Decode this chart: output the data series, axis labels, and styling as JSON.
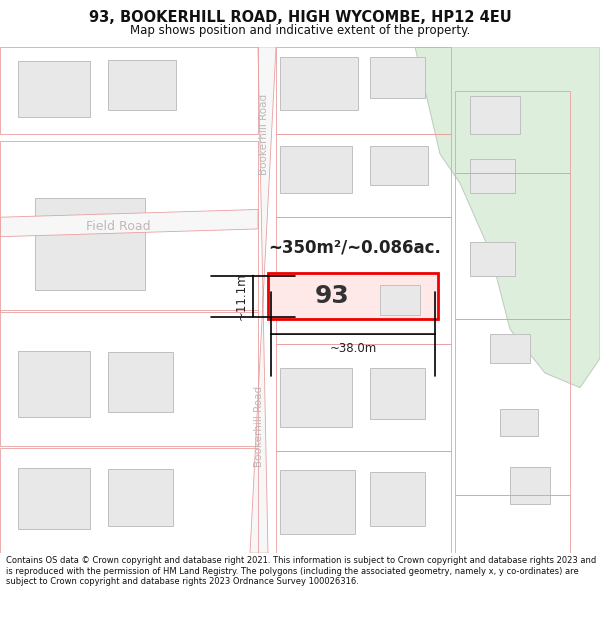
{
  "title": "93, BOOKERHILL ROAD, HIGH WYCOMBE, HP12 4EU",
  "subtitle": "Map shows position and indicative extent of the property.",
  "footer_text": "Contains OS data © Crown copyright and database right 2021. This information is subject to Crown copyright and database rights 2023 and is reproduced with the permission of HM Land Registry. The polygons (including the associated geometry, namely x, y co-ordinates) are subject to Crown copyright and database rights 2023 Ordnance Survey 100026316.",
  "map_bg": "#f7f7f7",
  "road_color": "#f7f7f7",
  "road_border": "#e8a0a0",
  "building_fill": "#e8e8e8",
  "building_border": "#c0c0c0",
  "highlight_fill": "#ffe8e8",
  "highlight_border": "#ee0000",
  "green_fill": "#ddeedd",
  "green_border": "#bbccbb",
  "plot_border_color": "#e8a0a0",
  "road_label_color": "#c0b8b8",
  "area_text": "~350m²/~0.086ac.",
  "label_93": "93",
  "label_width": "~38.0m",
  "label_height": "~11.1m",
  "road_name_top": "Bookerhill Road",
  "road_name_bot": "Bookerhill Road",
  "road_name_field": "Field Road",
  "title_fontsize": 10.5,
  "subtitle_fontsize": 8.5,
  "footer_fontsize": 6.0
}
